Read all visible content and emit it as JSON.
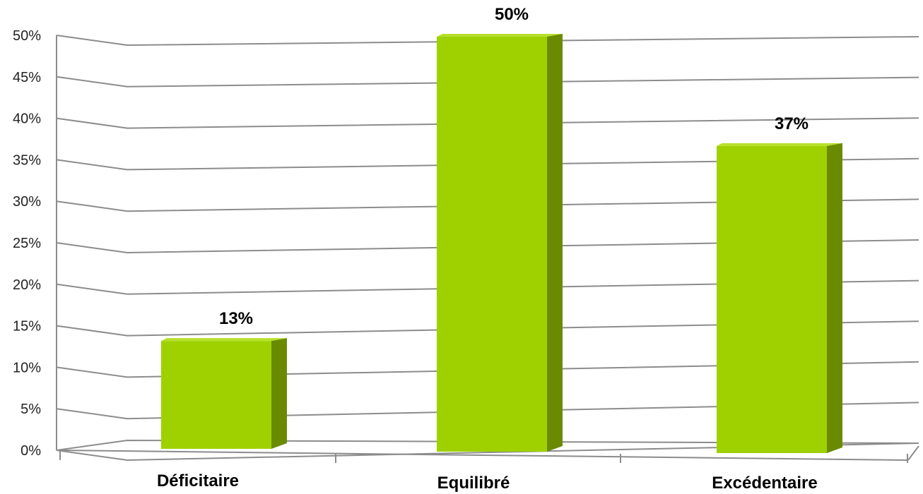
{
  "chart_data": {
    "type": "bar",
    "categories": [
      "Déficitaire",
      "Equilibré",
      "Excédentaire"
    ],
    "values": [
      13,
      50,
      37
    ],
    "data_labels": [
      "13%",
      "50%",
      "37%"
    ],
    "y_ticks": [
      "0%",
      "5%",
      "10%",
      "15%",
      "20%",
      "25%",
      "30%",
      "35%",
      "40%",
      "45%",
      "50%"
    ],
    "ylim": [
      0,
      50
    ],
    "grid": true,
    "legend": "none",
    "title": "",
    "xlabel": "",
    "ylabel": "",
    "colors": {
      "bar_front": "#9fd100",
      "bar_side": "#6a8a00",
      "bar_top": "#b6e02a",
      "grid": "#8c8c8c"
    }
  }
}
